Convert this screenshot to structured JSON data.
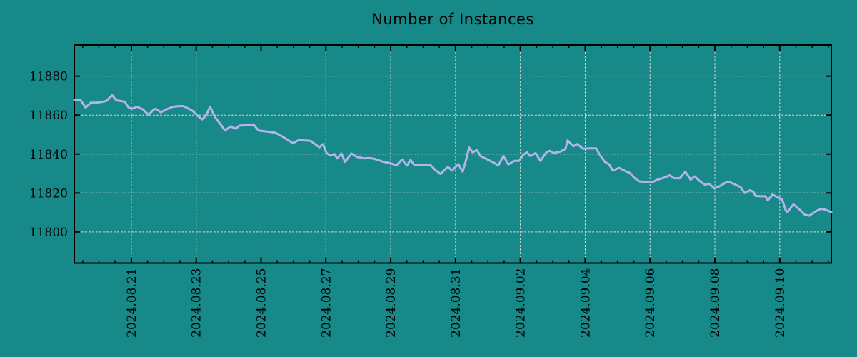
{
  "page": {
    "background_color": "#178989",
    "text_color": "#000000"
  },
  "chart_data": {
    "type": "line",
    "title": "Number of Instances",
    "xlabel": "",
    "ylabel": "",
    "legend": "none",
    "grid": "dashed gridlines at major ticks, both axes",
    "colors": {
      "background": "#178989",
      "line": "#b4b4ea",
      "grid": "#cfd8cf",
      "axis": "#000000"
    },
    "x_axis": {
      "unit": "days since left edge of plot (left edge ≈ 2024-08-19 ~06:00, right edge ≈ 2024-09-11 ~14:00)",
      "range": [
        0,
        23.35
      ],
      "minor_tick_interval_days": 0.5,
      "major_ticks": [
        {
          "d": 1.76,
          "label": "2024.08.21"
        },
        {
          "d": 3.76,
          "label": "2024.08.23"
        },
        {
          "d": 5.76,
          "label": "2024.08.25"
        },
        {
          "d": 7.76,
          "label": "2024.08.27"
        },
        {
          "d": 9.76,
          "label": "2024.08.29"
        },
        {
          "d": 11.76,
          "label": "2024.08.31"
        },
        {
          "d": 13.76,
          "label": "2024.09.02"
        },
        {
          "d": 15.76,
          "label": "2024.09.04"
        },
        {
          "d": 17.76,
          "label": "2024.09.06"
        },
        {
          "d": 19.76,
          "label": "2024.09.08"
        },
        {
          "d": 21.76,
          "label": "2024.09.10"
        }
      ]
    },
    "y_axis": {
      "range": [
        11784,
        11896
      ],
      "tick_interval": 20,
      "major_ticks": [
        11880,
        11860,
        11840,
        11820,
        11800
      ]
    },
    "series": [
      {
        "name": "instances",
        "color": "#b4b4ea",
        "points": [
          [
            0,
            11867.6
          ],
          [
            0.2,
            11867.6
          ],
          [
            0.35,
            11863.9
          ],
          [
            0.51,
            11866.4
          ],
          [
            0.7,
            11866.4
          ],
          [
            0.86,
            11866.8
          ],
          [
            0.99,
            11867.3
          ],
          [
            1.08,
            11868.8
          ],
          [
            1.17,
            11870.2
          ],
          [
            1.3,
            11867.6
          ],
          [
            1.45,
            11867.2
          ],
          [
            1.56,
            11866.9
          ],
          [
            1.67,
            11864.0
          ],
          [
            1.78,
            11863.3
          ],
          [
            1.94,
            11864.3
          ],
          [
            2.11,
            11863.0
          ],
          [
            2.29,
            11860.2
          ],
          [
            2.44,
            11862.7
          ],
          [
            2.51,
            11863.3
          ],
          [
            2.67,
            11861.5
          ],
          [
            2.84,
            11862.9
          ],
          [
            3.04,
            11864.3
          ],
          [
            3.22,
            11864.6
          ],
          [
            3.37,
            11864.6
          ],
          [
            3.5,
            11863.5
          ],
          [
            3.66,
            11862.1
          ],
          [
            3.81,
            11859.6
          ],
          [
            3.94,
            11857.8
          ],
          [
            4.05,
            11859.5
          ],
          [
            4.19,
            11864.3
          ],
          [
            4.34,
            11859.0
          ],
          [
            4.54,
            11854.6
          ],
          [
            4.65,
            11852.1
          ],
          [
            4.82,
            11854.2
          ],
          [
            4.98,
            11853.0
          ],
          [
            5.09,
            11854.6
          ],
          [
            5.31,
            11854.8
          ],
          [
            5.53,
            11855.2
          ],
          [
            5.68,
            11852.1
          ],
          [
            5.97,
            11851.5
          ],
          [
            6.19,
            11851.0
          ],
          [
            6.41,
            11849.1
          ],
          [
            6.59,
            11847.2
          ],
          [
            6.74,
            11845.6
          ],
          [
            6.92,
            11847.2
          ],
          [
            7.14,
            11847.0
          ],
          [
            7.29,
            11846.8
          ],
          [
            7.4,
            11845.4
          ],
          [
            7.56,
            11843.5
          ],
          [
            7.67,
            11845.1
          ],
          [
            7.78,
            11840.5
          ],
          [
            7.91,
            11839.2
          ],
          [
            8.02,
            11840.1
          ],
          [
            8.11,
            11837.8
          ],
          [
            8.24,
            11840.3
          ],
          [
            8.35,
            11836.0
          ],
          [
            8.55,
            11840.3
          ],
          [
            8.72,
            11838.5
          ],
          [
            8.94,
            11837.8
          ],
          [
            9.12,
            11838.0
          ],
          [
            9.27,
            11837.5
          ],
          [
            9.54,
            11836.0
          ],
          [
            9.76,
            11835.3
          ],
          [
            9.93,
            11834.1
          ],
          [
            10.11,
            11837.2
          ],
          [
            10.26,
            11834.1
          ],
          [
            10.37,
            11837.0
          ],
          [
            10.48,
            11834.5
          ],
          [
            10.7,
            11834.5
          ],
          [
            10.99,
            11834.3
          ],
          [
            11.15,
            11831.6
          ],
          [
            11.3,
            11829.8
          ],
          [
            11.52,
            11833.5
          ],
          [
            11.65,
            11831.6
          ],
          [
            11.85,
            11834.8
          ],
          [
            11.98,
            11831.0
          ],
          [
            12.07,
            11836.0
          ],
          [
            12.18,
            11843.3
          ],
          [
            12.29,
            11840.9
          ],
          [
            12.42,
            11842.1
          ],
          [
            12.53,
            11839.0
          ],
          [
            12.75,
            11837.2
          ],
          [
            12.97,
            11835.3
          ],
          [
            13.08,
            11834.1
          ],
          [
            13.24,
            11839.0
          ],
          [
            13.39,
            11834.7
          ],
          [
            13.57,
            11836.5
          ],
          [
            13.72,
            11836.5
          ],
          [
            13.85,
            11839.6
          ],
          [
            13.96,
            11840.9
          ],
          [
            14.07,
            11839.0
          ],
          [
            14.23,
            11840.5
          ],
          [
            14.38,
            11836.5
          ],
          [
            14.56,
            11840.9
          ],
          [
            14.67,
            11841.7
          ],
          [
            14.78,
            11840.5
          ],
          [
            15.0,
            11841.3
          ],
          [
            15.15,
            11842.7
          ],
          [
            15.22,
            11847.0
          ],
          [
            15.4,
            11844.0
          ],
          [
            15.51,
            11845.2
          ],
          [
            15.7,
            11842.7
          ],
          [
            15.88,
            11842.9
          ],
          [
            16.1,
            11842.9
          ],
          [
            16.21,
            11839.6
          ],
          [
            16.37,
            11836.0
          ],
          [
            16.5,
            11834.7
          ],
          [
            16.61,
            11831.6
          ],
          [
            16.81,
            11832.9
          ],
          [
            17.03,
            11831.0
          ],
          [
            17.14,
            11830.3
          ],
          [
            17.27,
            11827.9
          ],
          [
            17.42,
            11826.0
          ],
          [
            17.64,
            11825.5
          ],
          [
            17.82,
            11825.5
          ],
          [
            17.97,
            11826.7
          ],
          [
            18.19,
            11827.9
          ],
          [
            18.37,
            11829.1
          ],
          [
            18.5,
            11827.6
          ],
          [
            18.68,
            11827.6
          ],
          [
            18.85,
            11831.0
          ],
          [
            19.01,
            11826.9
          ],
          [
            19.14,
            11828.5
          ],
          [
            19.3,
            11826.0
          ],
          [
            19.45,
            11824.2
          ],
          [
            19.58,
            11824.8
          ],
          [
            19.74,
            11822.4
          ],
          [
            19.91,
            11823.5
          ],
          [
            20.11,
            11825.5
          ],
          [
            20.18,
            11825.8
          ],
          [
            20.4,
            11824.2
          ],
          [
            20.55,
            11823.0
          ],
          [
            20.68,
            11820.0
          ],
          [
            20.84,
            11821.4
          ],
          [
            20.95,
            11820.6
          ],
          [
            21.01,
            11818.5
          ],
          [
            21.17,
            11818.3
          ],
          [
            21.32,
            11818.3
          ],
          [
            21.39,
            11816.2
          ],
          [
            21.54,
            11819.2
          ],
          [
            21.72,
            11817.5
          ],
          [
            21.83,
            11816.8
          ],
          [
            21.94,
            11811.3
          ],
          [
            22.0,
            11810.1
          ],
          [
            22.16,
            11813.8
          ],
          [
            22.2,
            11814.0
          ],
          [
            22.38,
            11811.3
          ],
          [
            22.53,
            11808.9
          ],
          [
            22.66,
            11808.3
          ],
          [
            22.88,
            11810.7
          ],
          [
            23.04,
            11811.9
          ],
          [
            23.19,
            11811.3
          ],
          [
            23.35,
            11810.1
          ]
        ]
      }
    ]
  }
}
